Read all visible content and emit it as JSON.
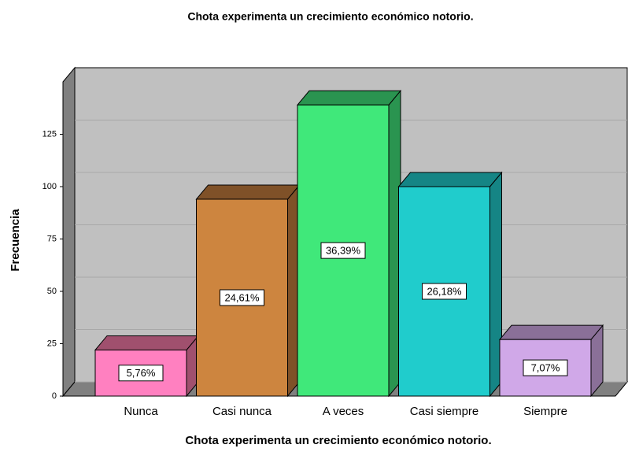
{
  "chart_data": {
    "type": "bar3d",
    "title": "Chota experimenta un crecimiento económico notorio.",
    "xlabel": "Chota experimenta un crecimiento económico notorio.",
    "ylabel": "Frecuencia",
    "categories": [
      "Nunca",
      "Casi nunca",
      "A veces",
      "Casi siempre",
      "Siempre"
    ],
    "values": [
      22,
      94,
      139,
      100,
      27
    ],
    "value_labels": [
      "5,76%",
      "24,61%",
      "36,39%",
      "26,18%",
      "7,07%"
    ],
    "colors": [
      "#ff80c0",
      "#cd853f",
      "#40e87a",
      "#20cccc",
      "#d0a8e8"
    ],
    "side_colors": [
      "#a0506e",
      "#7f5128",
      "#2a9450",
      "#158585",
      "#8a7098"
    ],
    "ylim": [
      0,
      150
    ],
    "yticks": [
      0,
      25,
      50,
      75,
      100,
      125
    ],
    "grid": true
  }
}
